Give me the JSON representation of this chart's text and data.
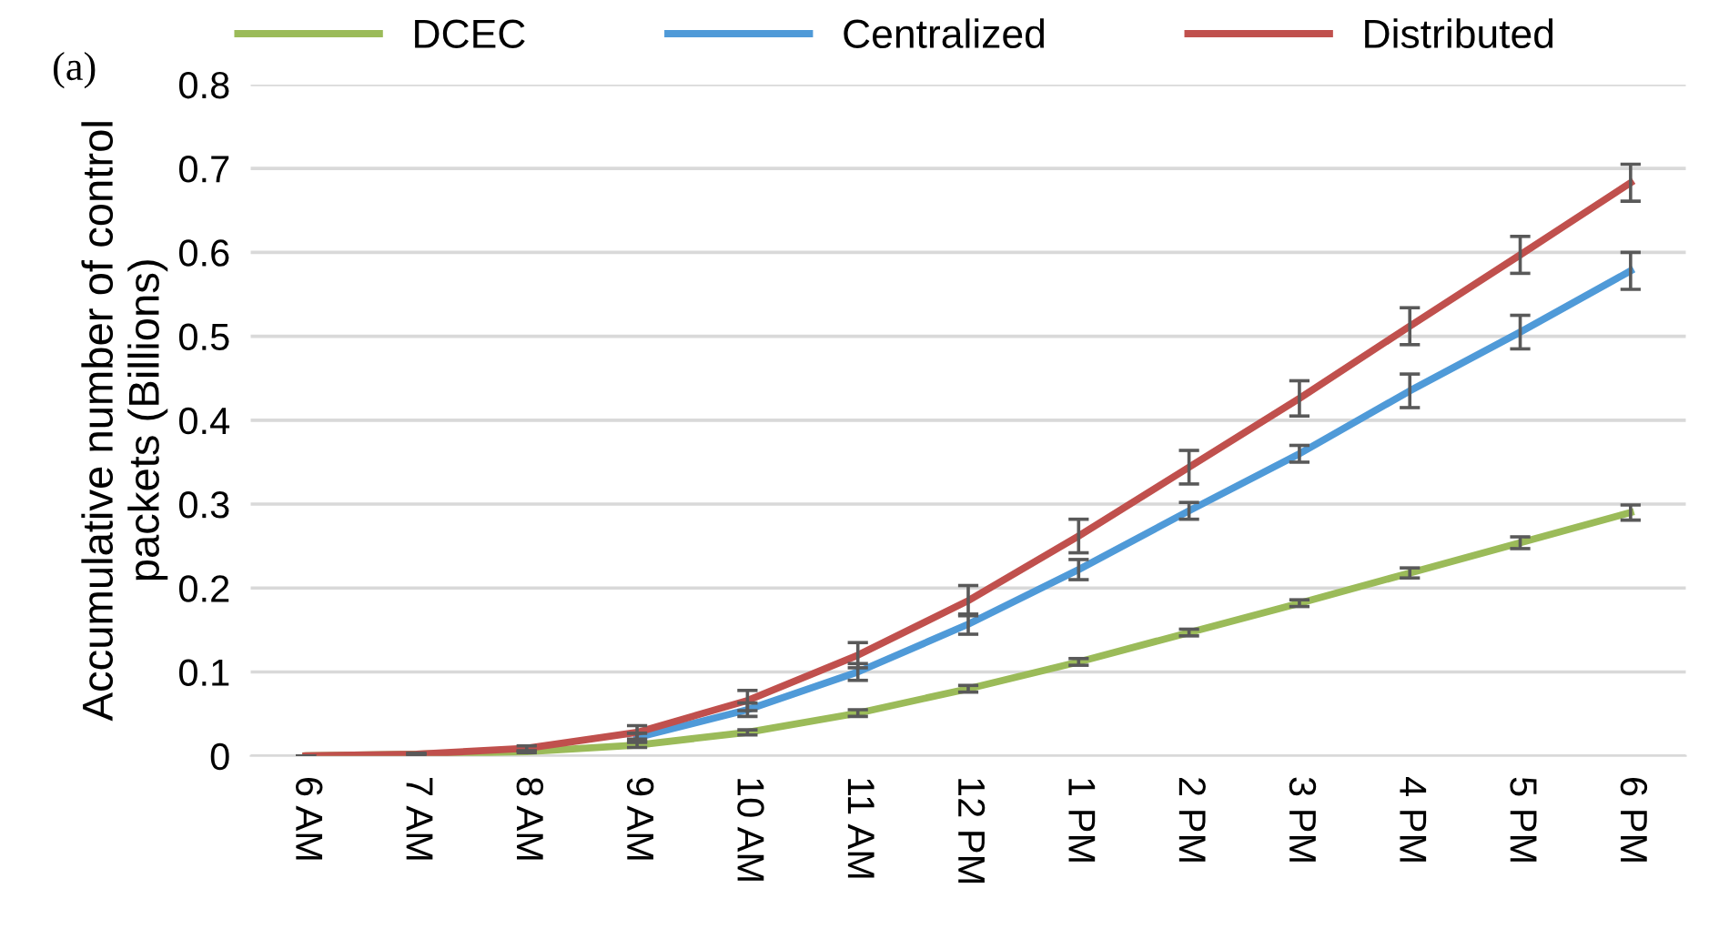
{
  "chart_data": {
    "type": "line",
    "ylabel": "Accumulative number of control\npackets (Billions)",
    "annotations": [
      "(a)"
    ],
    "categories": [
      "6 AM",
      "7 AM",
      "8 AM",
      "9 AM",
      "10 AM",
      "11 AM",
      "12 PM",
      "1 PM",
      "2 PM",
      "3 PM",
      "4 PM",
      "5 PM",
      "6 PM"
    ],
    "series": [
      {
        "name": "DCEC",
        "color": "#9bbb59",
        "values": [
          0,
          0.002,
          0.005,
          0.013,
          0.028,
          0.051,
          0.08,
          0.112,
          0.147,
          0.182,
          0.218,
          0.254,
          0.29
        ],
        "errors": [
          0,
          0.001,
          0.001,
          0.003,
          0.003,
          0.004,
          0.004,
          0.004,
          0.004,
          0.004,
          0.006,
          0.007,
          0.009
        ]
      },
      {
        "name": "Centralized",
        "color": "#4f9ad8",
        "values": [
          null,
          null,
          null,
          0.022,
          0.055,
          0.1,
          0.157,
          0.222,
          0.292,
          0.36,
          0.435,
          0.505,
          0.578
        ],
        "errors": [
          null,
          null,
          null,
          0.005,
          0.008,
          0.01,
          0.012,
          0.012,
          0.01,
          0.01,
          0.02,
          0.02,
          0.022
        ]
      },
      {
        "name": "Distributed",
        "color": "#c0504d",
        "values": [
          0,
          0.002,
          0.009,
          0.028,
          0.066,
          0.12,
          0.185,
          0.262,
          0.344,
          0.426,
          0.512,
          0.597,
          0.683
        ],
        "errors": [
          0,
          0.001,
          0.003,
          0.008,
          0.012,
          0.015,
          0.018,
          0.02,
          0.02,
          0.021,
          0.022,
          0.022,
          0.022
        ]
      }
    ],
    "ylim": [
      0,
      0.8
    ],
    "yticks": [
      0,
      0.1,
      0.2,
      0.3,
      0.4,
      0.5,
      0.6,
      0.7,
      0.8
    ],
    "grid": "y",
    "legend": "top",
    "marker": "none",
    "line_style": "solid"
  }
}
